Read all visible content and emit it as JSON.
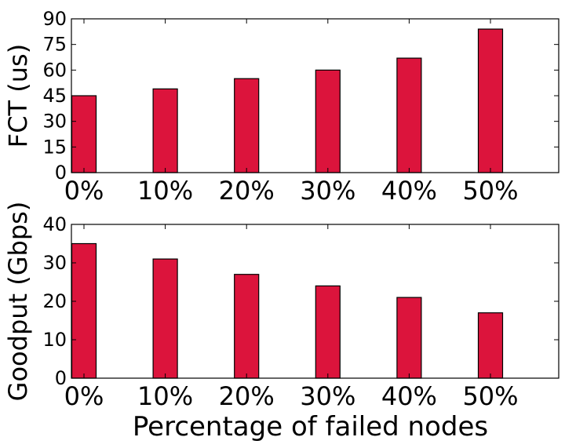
{
  "chart_data": [
    {
      "type": "bar",
      "categories": [
        "0%",
        "10%",
        "20%",
        "30%",
        "40%",
        "50%"
      ],
      "values": [
        45,
        49,
        55,
        60,
        67,
        84
      ],
      "title": "",
      "xlabel": "",
      "ylabel": "FCT (us)",
      "ylim": [
        0,
        90
      ],
      "yticks": [
        "0",
        "15",
        "30",
        "45",
        "60",
        "75",
        "90"
      ],
      "bar_color": "#dc143c",
      "grid": false
    },
    {
      "type": "bar",
      "categories": [
        "0%",
        "10%",
        "20%",
        "30%",
        "40%",
        "50%"
      ],
      "values": [
        35,
        31,
        27,
        24,
        21,
        17
      ],
      "title": "",
      "xlabel": "Percentage of failed nodes",
      "ylabel": "Goodput (Gbps)",
      "ylim": [
        0,
        40
      ],
      "yticks": [
        "0",
        "10",
        "20",
        "30",
        "40"
      ],
      "bar_color": "#dc143c",
      "grid": false
    }
  ]
}
